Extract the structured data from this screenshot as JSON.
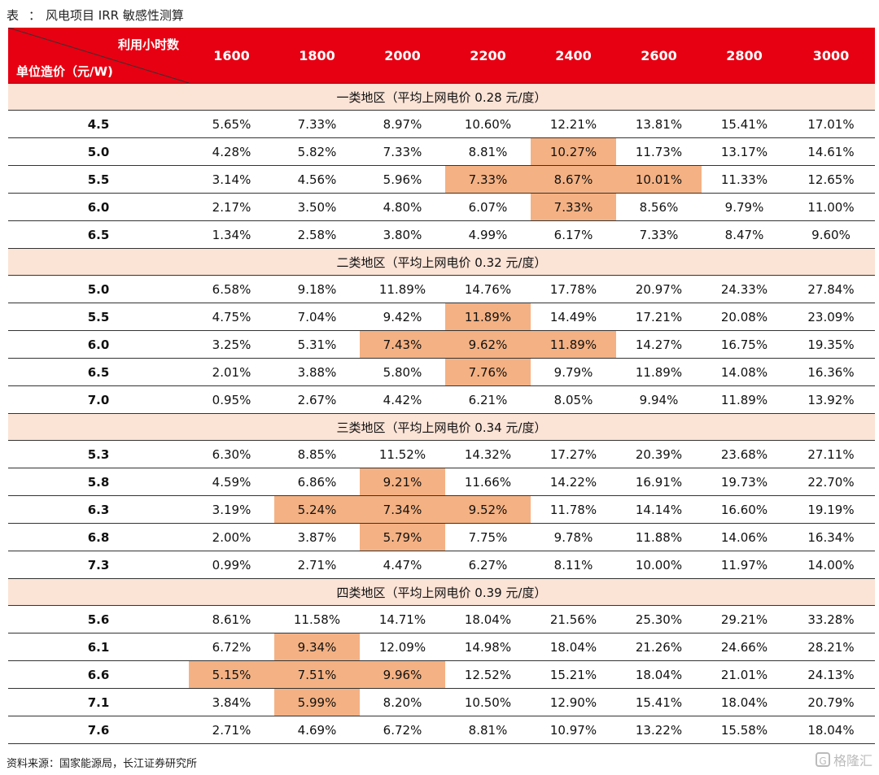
{
  "caption": {
    "prefix": "表",
    "sep": "：",
    "title": "风电项目 IRR 敏感性测算"
  },
  "header": {
    "corner_top": "利用小时数",
    "corner_bottom": "单位造价（元/W)",
    "hours": [
      "1600",
      "1800",
      "2000",
      "2200",
      "2400",
      "2600",
      "2800",
      "3000"
    ]
  },
  "colors": {
    "header_bg": "#e60012",
    "region_bg": "#fbe3d6",
    "highlight": "#f4b183"
  },
  "regions": [
    {
      "title": "一类地区（平均上网电价 0.28 元/度）",
      "rows": [
        {
          "cost": "4.5",
          "values": [
            "5.65%",
            "7.33%",
            "8.97%",
            "10.60%",
            "12.21%",
            "13.81%",
            "15.41%",
            "17.01%"
          ],
          "highlight": []
        },
        {
          "cost": "5.0",
          "values": [
            "4.28%",
            "5.82%",
            "7.33%",
            "8.81%",
            "10.27%",
            "11.73%",
            "13.17%",
            "14.61%"
          ],
          "highlight": [
            4
          ]
        },
        {
          "cost": "5.5",
          "values": [
            "3.14%",
            "4.56%",
            "5.96%",
            "7.33%",
            "8.67%",
            "10.01%",
            "11.33%",
            "12.65%"
          ],
          "highlight": [
            3,
            4,
            5
          ]
        },
        {
          "cost": "6.0",
          "values": [
            "2.17%",
            "3.50%",
            "4.80%",
            "6.07%",
            "7.33%",
            "8.56%",
            "9.79%",
            "11.00%"
          ],
          "highlight": [
            4
          ]
        },
        {
          "cost": "6.5",
          "values": [
            "1.34%",
            "2.58%",
            "3.80%",
            "4.99%",
            "6.17%",
            "7.33%",
            "8.47%",
            "9.60%"
          ],
          "highlight": []
        }
      ]
    },
    {
      "title": "二类地区（平均上网电价 0.32 元/度）",
      "rows": [
        {
          "cost": "5.0",
          "values": [
            "6.58%",
            "9.18%",
            "11.89%",
            "14.76%",
            "17.78%",
            "20.97%",
            "24.33%",
            "27.84%"
          ],
          "highlight": []
        },
        {
          "cost": "5.5",
          "values": [
            "4.75%",
            "7.04%",
            "9.42%",
            "11.89%",
            "14.49%",
            "17.21%",
            "20.08%",
            "23.09%"
          ],
          "highlight": [
            3
          ]
        },
        {
          "cost": "6.0",
          "values": [
            "3.25%",
            "5.31%",
            "7.43%",
            "9.62%",
            "11.89%",
            "14.27%",
            "16.75%",
            "19.35%"
          ],
          "highlight": [
            2,
            3,
            4
          ]
        },
        {
          "cost": "6.5",
          "values": [
            "2.01%",
            "3.88%",
            "5.80%",
            "7.76%",
            "9.79%",
            "11.89%",
            "14.08%",
            "16.36%"
          ],
          "highlight": [
            3
          ]
        },
        {
          "cost": "7.0",
          "values": [
            "0.95%",
            "2.67%",
            "4.42%",
            "6.21%",
            "8.05%",
            "9.94%",
            "11.89%",
            "13.92%"
          ],
          "highlight": []
        }
      ]
    },
    {
      "title": "三类地区（平均上网电价 0.34 元/度）",
      "rows": [
        {
          "cost": "5.3",
          "values": [
            "6.30%",
            "8.85%",
            "11.52%",
            "14.32%",
            "17.27%",
            "20.39%",
            "23.68%",
            "27.11%"
          ],
          "highlight": []
        },
        {
          "cost": "5.8",
          "values": [
            "4.59%",
            "6.86%",
            "9.21%",
            "11.66%",
            "14.22%",
            "16.91%",
            "19.73%",
            "22.70%"
          ],
          "highlight": [
            2
          ]
        },
        {
          "cost": "6.3",
          "values": [
            "3.19%",
            "5.24%",
            "7.34%",
            "9.52%",
            "11.78%",
            "14.14%",
            "16.60%",
            "19.19%"
          ],
          "highlight": [
            1,
            2,
            3
          ]
        },
        {
          "cost": "6.8",
          "values": [
            "2.00%",
            "3.87%",
            "5.79%",
            "7.75%",
            "9.78%",
            "11.88%",
            "14.06%",
            "16.34%"
          ],
          "highlight": [
            2
          ]
        },
        {
          "cost": "7.3",
          "values": [
            "0.99%",
            "2.71%",
            "4.47%",
            "6.27%",
            "8.11%",
            "10.00%",
            "11.97%",
            "14.00%"
          ],
          "highlight": []
        }
      ]
    },
    {
      "title": "四类地区（平均上网电价 0.39 元/度）",
      "rows": [
        {
          "cost": "5.6",
          "values": [
            "8.61%",
            "11.58%",
            "14.71%",
            "18.04%",
            "21.56%",
            "25.30%",
            "29.21%",
            "33.28%"
          ],
          "highlight": []
        },
        {
          "cost": "6.1",
          "values": [
            "6.72%",
            "9.34%",
            "12.09%",
            "14.98%",
            "18.04%",
            "21.26%",
            "24.66%",
            "28.21%"
          ],
          "highlight": [
            1
          ]
        },
        {
          "cost": "6.6",
          "values": [
            "5.15%",
            "7.51%",
            "9.96%",
            "12.52%",
            "15.21%",
            "18.04%",
            "21.01%",
            "24.13%"
          ],
          "highlight": [
            0,
            1,
            2
          ]
        },
        {
          "cost": "7.1",
          "values": [
            "3.84%",
            "5.99%",
            "8.20%",
            "10.50%",
            "12.90%",
            "15.41%",
            "18.04%",
            "20.79%"
          ],
          "highlight": [
            1
          ]
        },
        {
          "cost": "7.6",
          "values": [
            "2.71%",
            "4.69%",
            "6.72%",
            "8.81%",
            "10.97%",
            "13.22%",
            "15.58%",
            "18.04%"
          ],
          "highlight": []
        }
      ]
    }
  ],
  "footer": {
    "source": "资料来源：国家能源局，长江证券研究所"
  },
  "watermark": {
    "logo_icon": "G",
    "text": "格隆汇"
  }
}
